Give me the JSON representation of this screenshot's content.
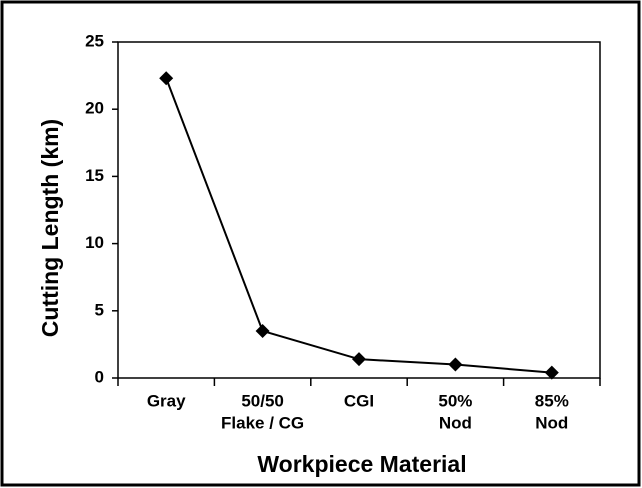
{
  "chart_data": {
    "type": "line",
    "categories": [
      [
        "Gray"
      ],
      [
        "50/50",
        "Flake / CG"
      ],
      [
        "CGI"
      ],
      [
        "50%",
        "Nod"
      ],
      [
        "85%",
        "Nod"
      ]
    ],
    "series": [
      {
        "color": "#000000",
        "values": [
          22.3,
          3.5,
          1.4,
          1.0,
          0.4
        ]
      }
    ],
    "ylim": [
      0,
      25
    ],
    "yticks": [
      0,
      5,
      10,
      15,
      20,
      25
    ],
    "ylabel": "Cutting Length (km)",
    "xlabel": "Workpiece Material",
    "grid": false
  }
}
